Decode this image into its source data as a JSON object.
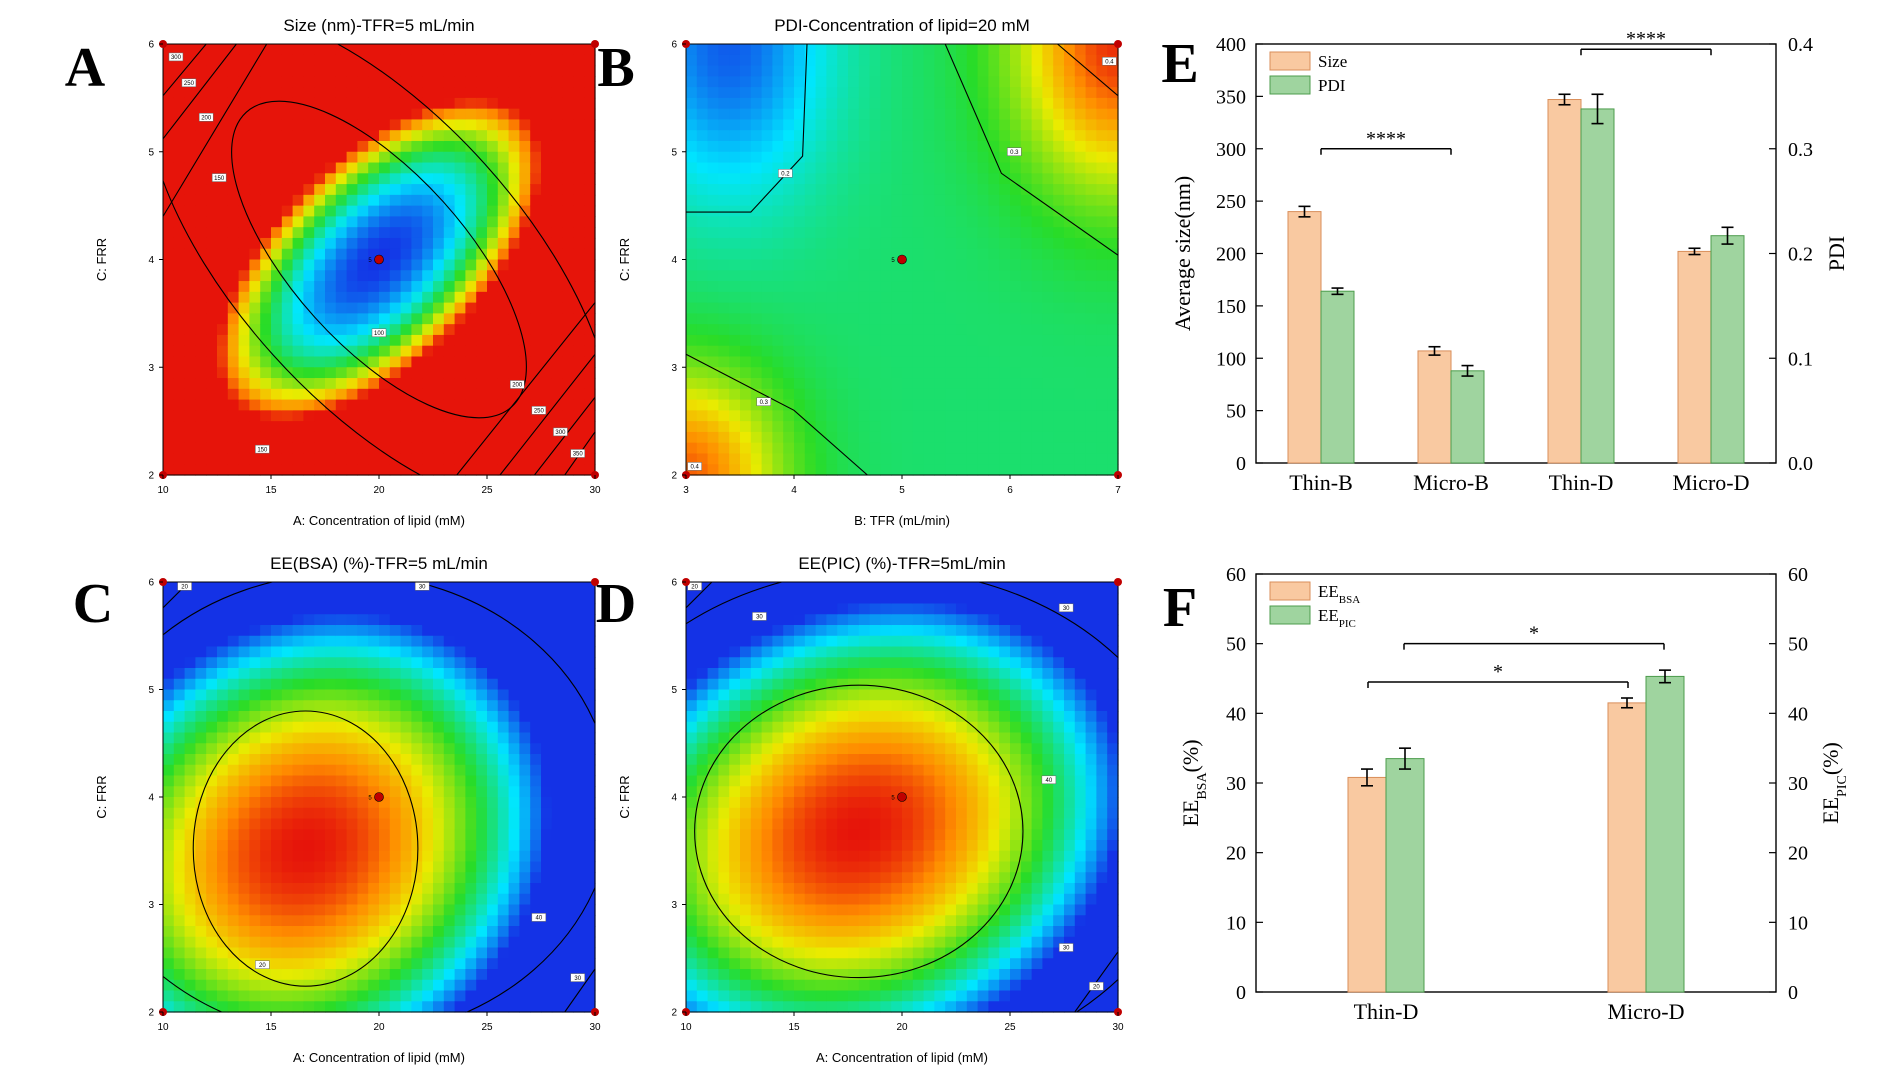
{
  "figure": {
    "panels": [
      "A",
      "B",
      "C",
      "D",
      "E",
      "F"
    ]
  },
  "colors": {
    "size_bar": "#f9c9a1",
    "size_bar_edge": "#d98e5a",
    "pdi_bar": "#9fd49f",
    "pdi_bar_edge": "#4c9c4c",
    "design_point": "#c00000"
  },
  "chart_data": [
    {
      "panel": "A",
      "type": "heatmap",
      "title": "Size (nm)-TFR=5 mL/min",
      "xlabel": "A: Concentration of lipid (mM)",
      "ylabel": "C: FRR",
      "xlim": [
        10,
        30
      ],
      "ylim": [
        2,
        6
      ],
      "x_ticks": [
        "10",
        "15",
        "20",
        "25",
        "30"
      ],
      "y_ticks": [
        "2",
        "3",
        "4",
        "5",
        "6"
      ],
      "colormap": "rainbow, blue = low, red = high",
      "center_point": {
        "x": 20,
        "y": 4,
        "label": "5"
      },
      "contour_labels": [
        "300",
        "250",
        "200",
        "150",
        "100",
        "150",
        "200",
        "250",
        "300",
        "350"
      ]
    },
    {
      "panel": "B",
      "type": "heatmap",
      "title": "PDI-Concentration of lipid=20 mM",
      "xlabel": "B: TFR (mL/min)",
      "ylabel": "C: FRR",
      "xlim": [
        3,
        7
      ],
      "ylim": [
        2,
        6
      ],
      "x_ticks": [
        "3",
        "4",
        "5",
        "6",
        "7"
      ],
      "y_ticks": [
        "2",
        "3",
        "4",
        "5",
        "6"
      ],
      "colormap": "rainbow, blue = low, red = high",
      "center_point": {
        "x": 5,
        "y": 4,
        "label": "5"
      },
      "contour_labels": [
        "0.4",
        "0.2",
        "0.3",
        "0.3",
        "0.4"
      ]
    },
    {
      "panel": "C",
      "type": "heatmap",
      "title": "EE(BSA) (%)-TFR=5 mL/min",
      "xlabel": "A: Concentration of lipid (mM)",
      "ylabel": "C: FRR",
      "xlim": [
        10,
        30
      ],
      "ylim": [
        2,
        6
      ],
      "x_ticks": [
        "10",
        "15",
        "20",
        "25",
        "30"
      ],
      "y_ticks": [
        "2",
        "3",
        "4",
        "5",
        "6"
      ],
      "colormap": "rainbow, blue = low, red = high",
      "center_point": {
        "x": 20,
        "y": 4,
        "label": "5"
      },
      "contour_labels": [
        "20",
        "30",
        "40",
        "30",
        "20"
      ]
    },
    {
      "panel": "D",
      "type": "heatmap",
      "title": "EE(PIC) (%)-TFR=5mL/min",
      "xlabel": "A: Concentration of lipid (mM)",
      "ylabel": "C: FRR",
      "xlim": [
        10,
        30
      ],
      "ylim": [
        2,
        6
      ],
      "x_ticks": [
        "10",
        "15",
        "20",
        "25",
        "30"
      ],
      "y_ticks": [
        "2",
        "3",
        "4",
        "5",
        "6"
      ],
      "colormap": "rainbow, blue = low, red = high",
      "center_point": {
        "x": 20,
        "y": 4,
        "label": "5"
      },
      "contour_labels": [
        "20",
        "30",
        "30",
        "40",
        "30",
        "20"
      ]
    },
    {
      "panel": "E",
      "type": "bar",
      "categories": [
        "Thin-B",
        "Micro-B",
        "Thin-D",
        "Micro-D"
      ],
      "series": [
        {
          "name": "Size",
          "axis": "left",
          "values": [
            240,
            107,
            347,
            202
          ],
          "errors": [
            5,
            4,
            5,
            3
          ]
        },
        {
          "name": "PDI",
          "axis": "right",
          "values": [
            0.164,
            0.088,
            0.338,
            0.217
          ],
          "errors": [
            0.003,
            0.005,
            0.014,
            0.008
          ]
        }
      ],
      "ylabel": "Average size(nm)",
      "ylim": [
        0,
        400
      ],
      "y_ticks": [
        "0",
        "50",
        "100",
        "150",
        "200",
        "250",
        "300",
        "350",
        "400"
      ],
      "y2label": "PDI",
      "y2lim": [
        0,
        0.4
      ],
      "y2_ticks": [
        "0.0",
        "0.1",
        "0.2",
        "0.3",
        "0.4"
      ],
      "legend": "top-left",
      "significance": [
        {
          "from": "Thin-B",
          "to": "Micro-B",
          "label": "****"
        },
        {
          "from": "Thin-D",
          "to": "Micro-D",
          "label": "****"
        }
      ]
    },
    {
      "panel": "F",
      "type": "bar",
      "categories": [
        "Thin-D",
        "Micro-D"
      ],
      "series": [
        {
          "name": "EE",
          "sub": "BSA",
          "axis": "left",
          "values": [
            30.8,
            41.5
          ],
          "errors": [
            1.2,
            0.7
          ]
        },
        {
          "name": "EE",
          "sub": "PIC",
          "axis": "right",
          "values": [
            33.5,
            45.3
          ],
          "errors": [
            1.5,
            0.9
          ]
        }
      ],
      "ylabel": "EE",
      "ylabel_sub": "BSA",
      "ylabel_suffix": "(%)",
      "ylim": [
        0,
        60
      ],
      "y_ticks": [
        "0",
        "10",
        "20",
        "30",
        "40",
        "50",
        "60"
      ],
      "y2label": "EE",
      "y2label_sub": "PIC",
      "y2label_suffix": "(%)",
      "y2lim": [
        0,
        60
      ],
      "y2_ticks": [
        "0",
        "10",
        "20",
        "30",
        "40",
        "50",
        "60"
      ],
      "legend": "top-left",
      "significance": [
        {
          "from": "Thin-D",
          "to": "Micro-D",
          "series": "EE_BSA",
          "label": "*"
        },
        {
          "from": "Thin-D",
          "to": "Micro-D",
          "series": "EE_PIC",
          "label": "*"
        }
      ]
    }
  ]
}
